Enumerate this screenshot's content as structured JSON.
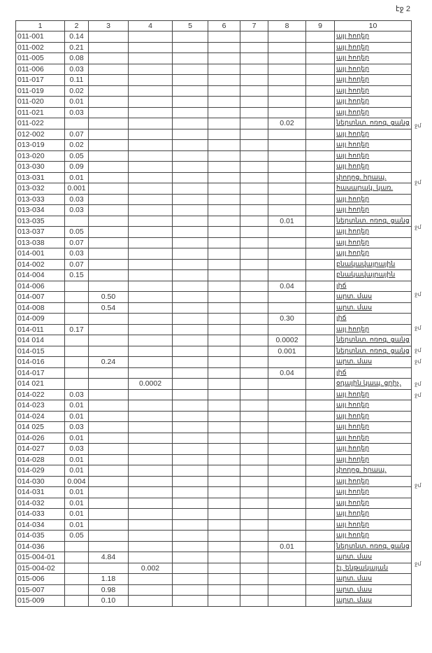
{
  "page_mark": "էջ 2",
  "headers": [
    "1",
    "2",
    "3",
    "4",
    "5",
    "6",
    "7",
    "8",
    "9",
    "10"
  ],
  "rows": [
    {
      "id": "011-001",
      "c2": "0.14",
      "c3": "",
      "c4": "",
      "c8": "",
      "desc": "այլ հողեր",
      "note": ""
    },
    {
      "id": "011-002",
      "c2": "0.21",
      "c3": "",
      "c4": "",
      "c8": "",
      "desc": "այլ հողեր",
      "note": ""
    },
    {
      "id": "011-005",
      "c2": "0.08",
      "c3": "",
      "c4": "",
      "c8": "",
      "desc": "այլ հողեր",
      "note": ""
    },
    {
      "id": "011-006",
      "c2": "0.03",
      "c3": "",
      "c4": "",
      "c8": "",
      "desc": "այլ հողեր",
      "note": ""
    },
    {
      "id": "011-017",
      "c2": "0.11",
      "c3": "",
      "c4": "",
      "c8": "",
      "desc": "այլ հողեր",
      "note": ""
    },
    {
      "id": "011-019",
      "c2": "0.02",
      "c3": "",
      "c4": "",
      "c8": "",
      "desc": "այլ հողեր",
      "note": ""
    },
    {
      "id": "011-020",
      "c2": "0.01",
      "c3": "",
      "c4": "",
      "c8": "",
      "desc": "այլ հողեր",
      "note": ""
    },
    {
      "id": "011-021",
      "c2": "0.03",
      "c3": "",
      "c4": "",
      "c8": "",
      "desc": "այլ հողեր",
      "note": ""
    },
    {
      "id": "011-022",
      "c2": "",
      "c3": "",
      "c4": "",
      "c8": "0.02",
      "desc": "ներտնտ. ոռոգ. ցանց",
      "note": "ջմ"
    },
    {
      "id": "012-002",
      "c2": "0.07",
      "c3": "",
      "c4": "",
      "c8": "",
      "desc": "այլ հողեր",
      "note": ""
    },
    {
      "id": "013-019",
      "c2": "0.02",
      "c3": "",
      "c4": "",
      "c8": "",
      "desc": "այլ հողեր",
      "note": ""
    },
    {
      "id": "013-020",
      "c2": "0.05",
      "c3": "",
      "c4": "",
      "c8": "",
      "desc": "այլ հողեր",
      "note": ""
    },
    {
      "id": "013-030",
      "c2": "0.09",
      "c3": "",
      "c4": "",
      "c8": "",
      "desc": "այլ հողեր",
      "note": ""
    },
    {
      "id": "013-031",
      "c2": "0.01",
      "c3": "",
      "c4": "",
      "c8": "",
      "desc": "փողոց. հրապ.",
      "note": "ջմ"
    },
    {
      "id": "013-032",
      "c2": "0.001",
      "c3": "",
      "c4": "",
      "c8": "",
      "desc": "հասարակ. կառ.",
      "note": ""
    },
    {
      "id": "013-033",
      "c2": "0.03",
      "c3": "",
      "c4": "",
      "c8": "",
      "desc": "այլ հողեր",
      "note": ""
    },
    {
      "id": "013-034",
      "c2": "0.03",
      "c3": "",
      "c4": "",
      "c8": "",
      "desc": "այլ հողեր",
      "note": ""
    },
    {
      "id": "013-035",
      "c2": "",
      "c3": "",
      "c4": "",
      "c8": "0.01",
      "desc": "ներտնտ. ոռոգ. ցանց",
      "note": "ջմ"
    },
    {
      "id": "013-037",
      "c2": "0.05",
      "c3": "",
      "c4": "",
      "c8": "",
      "desc": "այլ հողեր",
      "note": ""
    },
    {
      "id": "013-038",
      "c2": "0.07",
      "c3": "",
      "c4": "",
      "c8": "",
      "desc": "այլ հողեր",
      "note": ""
    },
    {
      "id": "014-001",
      "c2": "0.03",
      "c3": "",
      "c4": "",
      "c8": "",
      "desc": "այլ հողեր",
      "note": ""
    },
    {
      "id": "014-002",
      "c2": "0.07",
      "c3": "",
      "c4": "",
      "c8": "",
      "desc": "բնակավայրային",
      "note": ""
    },
    {
      "id": "014-004",
      "c2": "0.15",
      "c3": "",
      "c4": "",
      "c8": "",
      "desc": "բնակավայրային",
      "note": ""
    },
    {
      "id": "014-006",
      "c2": "",
      "c3": "",
      "c4": "",
      "c8": "0.04",
      "desc": "լիճ",
      "note": "ջմ"
    },
    {
      "id": "014-007",
      "c2": "",
      "c3": "0.50",
      "c4": "",
      "c8": "",
      "desc": "արտ. մաս",
      "note": ""
    },
    {
      "id": "014-008",
      "c2": "",
      "c3": "0.54",
      "c4": "",
      "c8": "",
      "desc": "արտ. մաս",
      "note": ""
    },
    {
      "id": "014-009",
      "c2": "",
      "c3": "",
      "c4": "",
      "c8": "0.30",
      "desc": "լիճ",
      "note": "ջմ"
    },
    {
      "id": "014-011",
      "c2": "0.17",
      "c3": "",
      "c4": "",
      "c8": "",
      "desc": "այլ հողեր",
      "note": ""
    },
    {
      "id": "014 014",
      "c2": "",
      "c3": "",
      "c4": "",
      "c8": "0.0002",
      "desc": "ներտնտ. ոռոգ. ցանց",
      "note": "ջմ"
    },
    {
      "id": "014-015",
      "c2": "",
      "c3": "",
      "c4": "",
      "c8": "0.001",
      "desc": "ներտնտ. ոռոգ. ցանց",
      "note": "ջմ"
    },
    {
      "id": "014-016",
      "c2": "",
      "c3": "0.24",
      "c4": "",
      "c8": "",
      "desc": "արտ. մաս",
      "note": ""
    },
    {
      "id": "014-017",
      "c2": "",
      "c3": "",
      "c4": "",
      "c8": "0.04",
      "desc": "լիճ",
      "note": "ջմ"
    },
    {
      "id": "014 021",
      "c2": "",
      "c3": "",
      "c4": "0.0002",
      "c8": "",
      "desc": "օդային կապ. ցրիչ.",
      "note": "ջմ"
    },
    {
      "id": "014-022",
      "c2": "0.03",
      "c3": "",
      "c4": "",
      "c8": "",
      "desc": "այլ հողեր",
      "note": ""
    },
    {
      "id": "014-023",
      "c2": "0.01",
      "c3": "",
      "c4": "",
      "c8": "",
      "desc": "այլ հողեր",
      "note": ""
    },
    {
      "id": "014-024",
      "c2": "0.01",
      "c3": "",
      "c4": "",
      "c8": "",
      "desc": "այլ հողեր",
      "note": ""
    },
    {
      "id": "014 025",
      "c2": "0.03",
      "c3": "",
      "c4": "",
      "c8": "",
      "desc": "այլ հողեր",
      "note": ""
    },
    {
      "id": "014-026",
      "c2": "0.01",
      "c3": "",
      "c4": "",
      "c8": "",
      "desc": "այլ հողեր",
      "note": ""
    },
    {
      "id": "014-027",
      "c2": "0.03",
      "c3": "",
      "c4": "",
      "c8": "",
      "desc": "այլ հողեր",
      "note": ""
    },
    {
      "id": "014-028",
      "c2": "0.01",
      "c3": "",
      "c4": "",
      "c8": "",
      "desc": "այլ հողեր",
      "note": ""
    },
    {
      "id": "014-029",
      "c2": "0.01",
      "c3": "",
      "c4": "",
      "c8": "",
      "desc": "փողոց. հրապ.",
      "note": "ջմ"
    },
    {
      "id": "014-030",
      "c2": "0.004",
      "c3": "",
      "c4": "",
      "c8": "",
      "desc": "այլ հողեր",
      "note": ""
    },
    {
      "id": "014-031",
      "c2": "0.01",
      "c3": "",
      "c4": "",
      "c8": "",
      "desc": "այլ հողեր",
      "note": ""
    },
    {
      "id": "014-032",
      "c2": "0.01",
      "c3": "",
      "c4": "",
      "c8": "",
      "desc": "այլ հողեր",
      "note": ""
    },
    {
      "id": "014-033",
      "c2": "0.01",
      "c3": "",
      "c4": "",
      "c8": "",
      "desc": "այլ հողեր",
      "note": ""
    },
    {
      "id": "014-034",
      "c2": "0.01",
      "c3": "",
      "c4": "",
      "c8": "",
      "desc": "այլ հողեր",
      "note": ""
    },
    {
      "id": "014-035",
      "c2": "0.05",
      "c3": "",
      "c4": "",
      "c8": "",
      "desc": "այլ հողեր",
      "note": ""
    },
    {
      "id": "014-036",
      "c2": "",
      "c3": "",
      "c4": "",
      "c8": "0.01",
      "desc": "ներտնտ. ոռոգ. ցանց",
      "note": "ջմ"
    },
    {
      "id": "015-004-01",
      "c2": "",
      "c3": "4.84",
      "c4": "",
      "c8": "",
      "desc": "արտ. մաս",
      "note": ""
    },
    {
      "id": "015-004-02",
      "c2": "",
      "c3": "",
      "c4": "0.002",
      "c8": "",
      "desc": "էլ. ենթակայան",
      "note": ""
    },
    {
      "id": "015-006",
      "c2": "",
      "c3": "1.18",
      "c4": "",
      "c8": "",
      "desc": "արտ. մաս",
      "note": ""
    },
    {
      "id": "015-007",
      "c2": "",
      "c3": "0.98",
      "c4": "",
      "c8": "",
      "desc": "արտ. մաս",
      "note": ""
    },
    {
      "id": "015-009",
      "c2": "",
      "c3": "0.10",
      "c4": "",
      "c8": "",
      "desc": "արտ. մաս",
      "note": ""
    }
  ]
}
